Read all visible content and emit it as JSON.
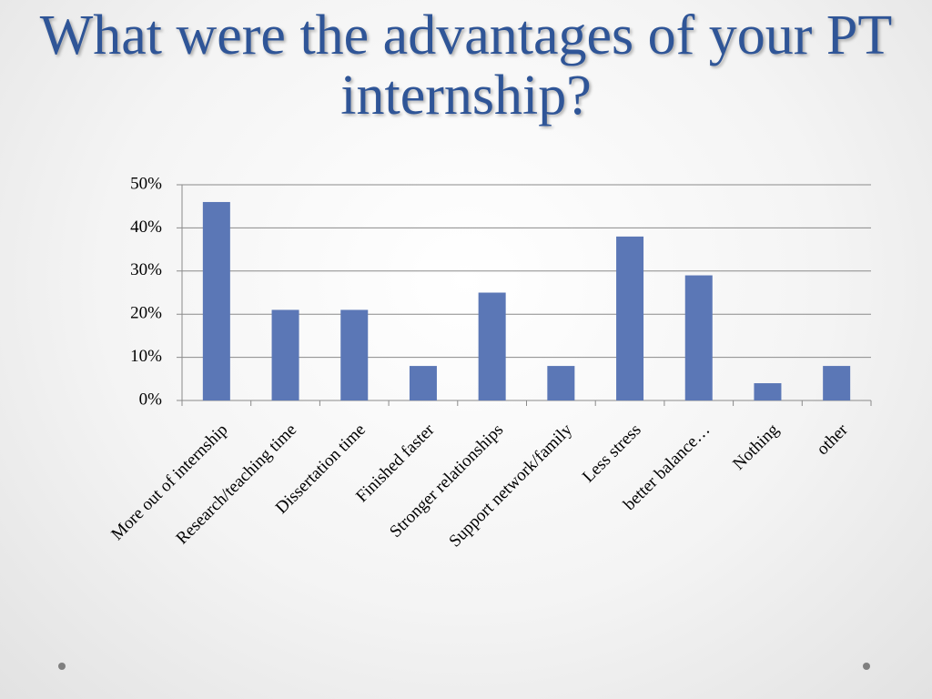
{
  "chart_data": {
    "type": "bar",
    "title": "What were the advantages of your PT internship?",
    "categories": [
      "More out of internship",
      "Research/teaching time",
      "Dissertation time",
      "Finished faster",
      "Stronger relationships",
      "Support network/family",
      "Less stress",
      "better balance…",
      "Nothing",
      "other"
    ],
    "values": [
      46,
      21,
      21,
      8,
      25,
      8,
      38,
      29,
      4,
      8
    ],
    "color": "#5b77b6",
    "ylim": [
      0,
      50
    ],
    "yticks": [
      {
        "value": 0,
        "label": "0%"
      },
      {
        "value": 10,
        "label": "10%"
      },
      {
        "value": 20,
        "label": "20%"
      },
      {
        "value": 30,
        "label": "30%"
      },
      {
        "value": 40,
        "label": "40%"
      },
      {
        "value": 50,
        "label": "50%"
      }
    ],
    "grid": true
  }
}
